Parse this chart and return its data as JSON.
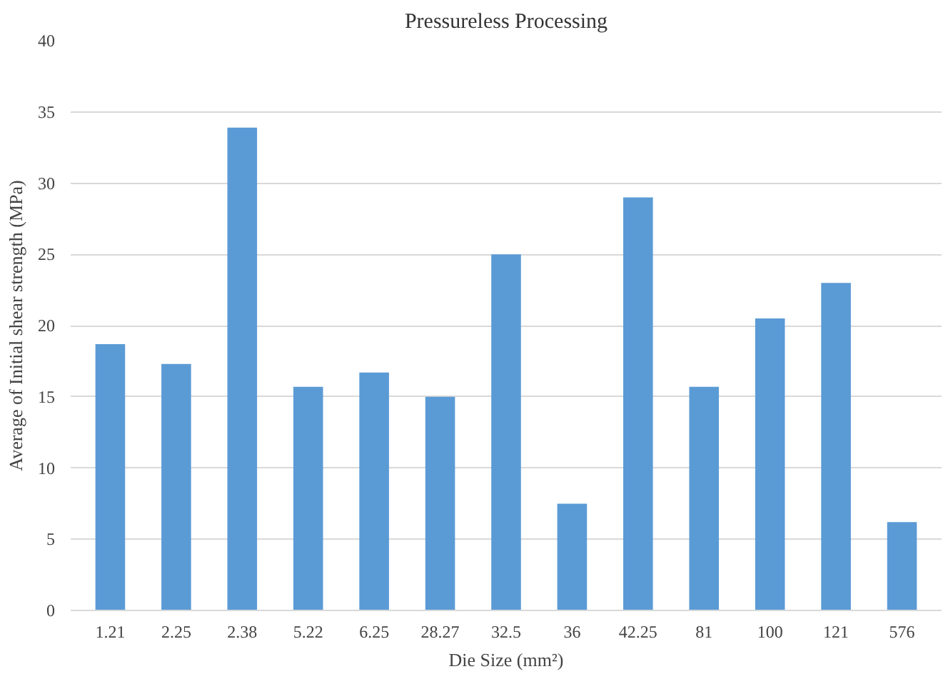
{
  "chart_data": {
    "type": "bar",
    "title": "Pressureless Processing",
    "xlabel": "Die Size (mm²)",
    "ylabel": "Average of Initial shear strength (MPa)",
    "categories": [
      "1.21",
      "2.25",
      "2.38",
      "5.22",
      "6.25",
      "28.27",
      "32.5",
      "36",
      "42.25",
      "81",
      "100",
      "121",
      "576"
    ],
    "values": [
      18.7,
      17.3,
      33.9,
      15.7,
      16.7,
      15.0,
      25.0,
      7.5,
      29.0,
      15.7,
      20.5,
      23.0,
      6.2
    ],
    "color": "#5b9bd5",
    "ylim": [
      0,
      40
    ],
    "yticks": [
      0,
      5,
      10,
      15,
      20,
      25,
      30,
      35,
      40
    ],
    "grid": "y"
  }
}
